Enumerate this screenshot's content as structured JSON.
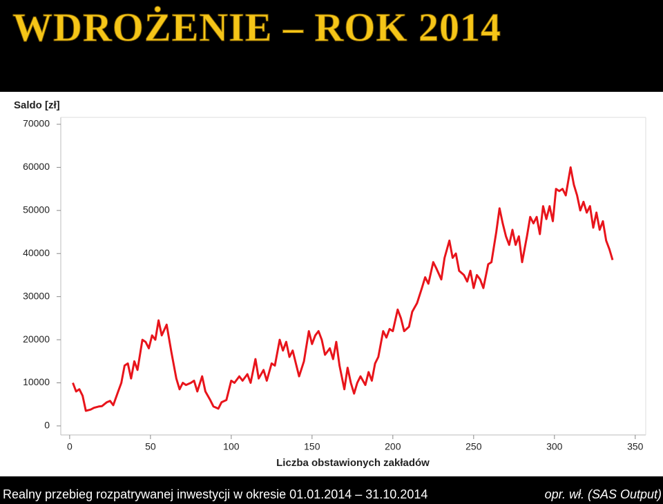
{
  "slide_title": "WDROŻENIE – ROK 2014",
  "chart_data": {
    "type": "line",
    "y_label": "Saldo [zł]",
    "x_label": "Liczba obstawionych zakładów",
    "xlim": [
      -5.5,
      356.5
    ],
    "xticks": [
      0,
      50,
      100,
      150,
      200,
      250,
      300,
      350
    ],
    "ylim": [
      -2100,
      71600
    ],
    "yticks": [
      0,
      10000,
      20000,
      30000,
      40000,
      50000,
      60000,
      70000
    ],
    "series": [
      {
        "color": "#e8141b",
        "x": [
          2,
          4,
          6,
          8,
          10,
          13,
          15,
          18,
          20,
          23,
          25,
          27,
          30,
          32,
          34,
          36,
          38,
          40,
          42,
          45,
          47,
          49,
          51,
          53,
          55,
          57,
          60,
          63,
          66,
          68,
          70,
          72,
          75,
          77,
          79,
          82,
          84,
          87,
          89,
          92,
          94,
          97,
          100,
          102,
          105,
          107,
          110,
          112,
          115,
          117,
          120,
          122,
          125,
          127,
          130,
          132,
          134,
          136,
          138,
          140,
          142,
          145,
          148,
          150,
          152,
          154,
          156,
          158,
          161,
          163,
          165,
          167,
          170,
          172,
          174,
          176,
          178,
          180,
          183,
          185,
          187,
          189,
          191,
          194,
          196,
          198,
          200,
          203,
          205,
          207,
          210,
          212,
          215,
          218,
          220,
          222,
          225,
          227,
          230,
          232,
          235,
          237,
          239,
          241,
          244,
          246,
          248,
          250,
          252,
          254,
          256,
          259,
          261,
          264,
          266,
          268,
          270,
          272,
          274,
          276,
          278,
          280,
          283,
          285,
          287,
          289,
          291,
          293,
          295,
          297,
          299,
          301,
          303,
          305,
          307,
          310,
          312,
          314,
          316,
          318,
          320,
          322,
          324,
          326,
          328,
          330,
          332,
          334,
          336
        ],
        "values": [
          10000,
          8000,
          8500,
          7000,
          3500,
          3800,
          4200,
          4500,
          4600,
          5500,
          5800,
          4800,
          8000,
          10000,
          14000,
          14500,
          11000,
          15000,
          13000,
          20000,
          19500,
          18000,
          21000,
          20000,
          24500,
          21000,
          23500,
          17000,
          11000,
          8500,
          10000,
          9500,
          10000,
          10500,
          8000,
          11500,
          8000,
          6000,
          4500,
          4000,
          5500,
          6000,
          10500,
          10000,
          11500,
          10500,
          12000,
          10000,
          15500,
          11000,
          13000,
          10500,
          14500,
          14000,
          20000,
          17500,
          19500,
          16000,
          17500,
          14500,
          11500,
          15000,
          22000,
          19000,
          21000,
          22000,
          20000,
          16500,
          18000,
          15500,
          19500,
          14000,
          8500,
          13500,
          10000,
          7500,
          10000,
          11500,
          9500,
          12500,
          10500,
          14500,
          16000,
          22000,
          20500,
          22500,
          22000,
          27000,
          25000,
          22000,
          23000,
          26500,
          28500,
          32000,
          34500,
          33000,
          38000,
          36500,
          34000,
          39000,
          43000,
          39000,
          40000,
          36000,
          35000,
          33500,
          36000,
          32000,
          35000,
          34000,
          32000,
          37500,
          38000,
          45000,
          50500,
          47000,
          44000,
          42000,
          45500,
          42000,
          44000,
          38000,
          44000,
          48500,
          47000,
          48500,
          44500,
          51000,
          48000,
          51000,
          47500,
          55000,
          54500,
          55000,
          53500,
          60000,
          56000,
          53500,
          50000,
          52000,
          49500,
          51000,
          46000,
          49500,
          45500,
          47500,
          43000,
          41000,
          38500
        ]
      }
    ]
  },
  "caption": "Realny przebieg rozpatrywanej inwestycji w okresie 01.01.2014 – 31.10.2014",
  "source": "opr. wł. (SAS Output)"
}
